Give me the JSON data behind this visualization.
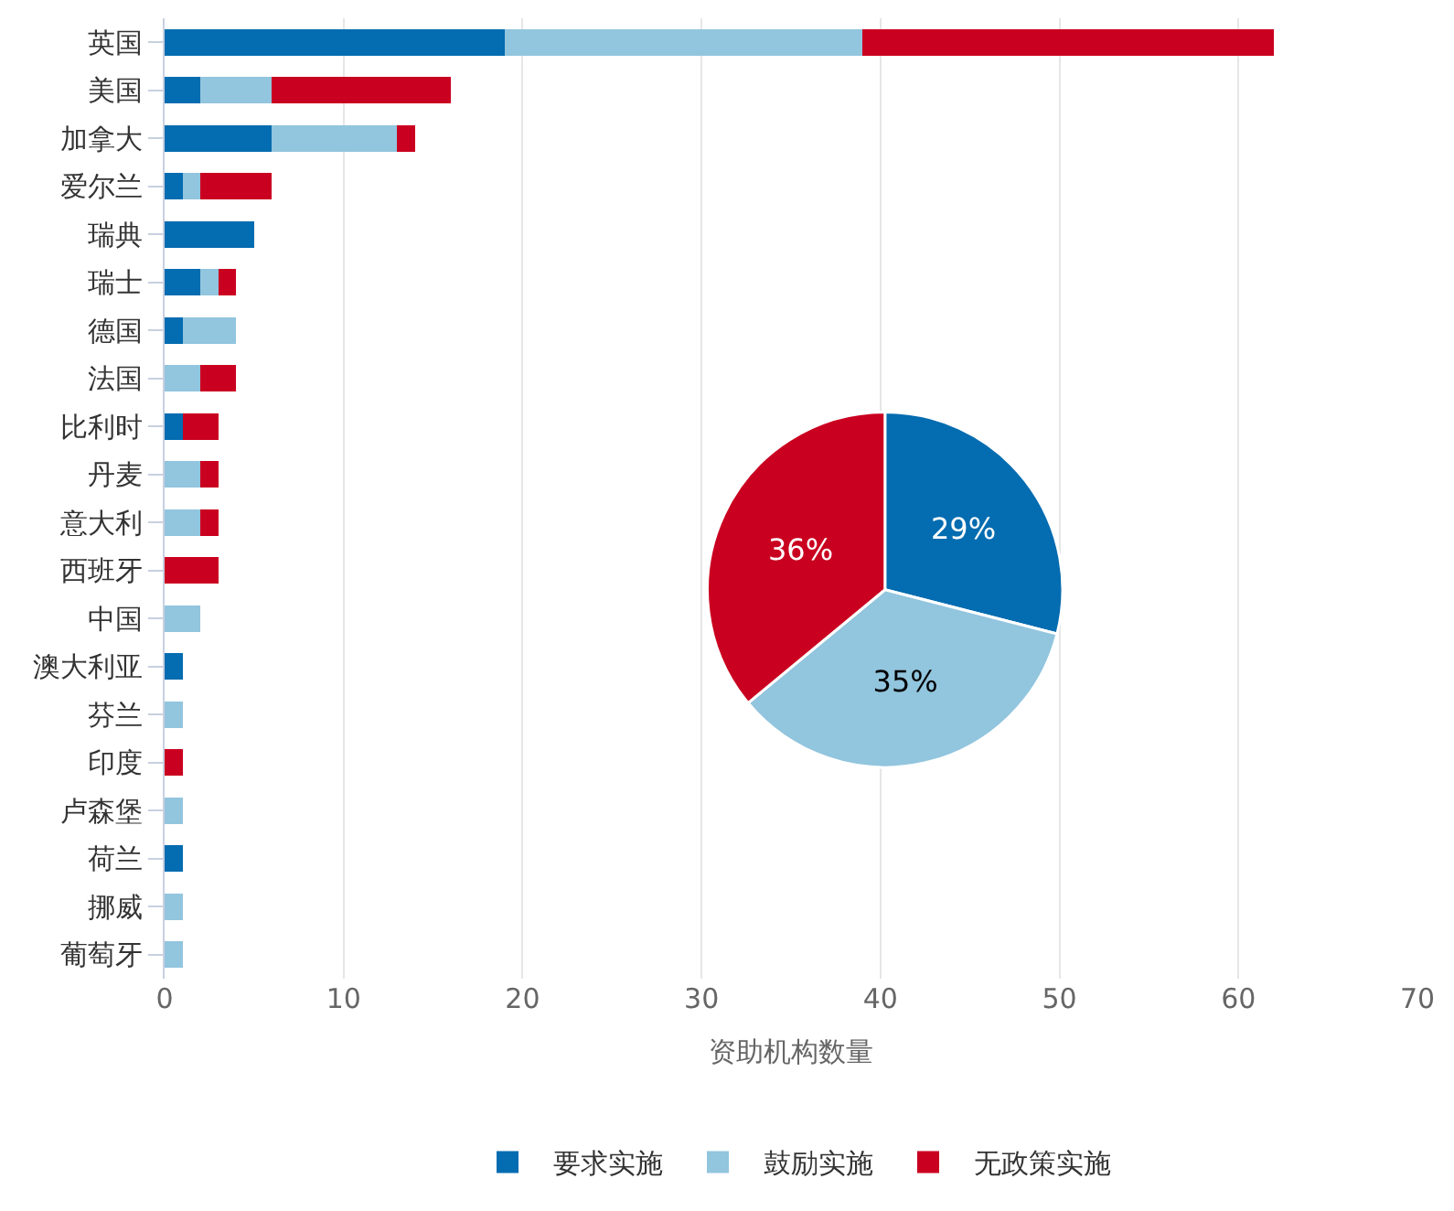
{
  "chart_data": [
    {
      "type": "bar",
      "orientation": "horizontal",
      "stacked": true,
      "xlabel": "资助机构数量",
      "categories": [
        "英国",
        "美国",
        "加拿大",
        "爱尔兰",
        "瑞典",
        "瑞士",
        "德国",
        "法国",
        "比利时",
        "丹麦",
        "意大利",
        "西班牙",
        "中国",
        "澳大利亚",
        "芬兰",
        "印度",
        "卢森堡",
        "荷兰",
        "挪威",
        "葡萄牙"
      ],
      "series": [
        {
          "name": "要求实施",
          "color": "#046cb0",
          "values": [
            19,
            2,
            6,
            1,
            5,
            2,
            1,
            null,
            1,
            null,
            null,
            null,
            null,
            1,
            null,
            null,
            null,
            1,
            null,
            null
          ]
        },
        {
          "name": "鼓励实施",
          "color": "#92c5de",
          "values": [
            20,
            4,
            7,
            1,
            null,
            1,
            3,
            2,
            null,
            2,
            2,
            null,
            2,
            null,
            1,
            null,
            1,
            null,
            1,
            1
          ]
        },
        {
          "name": "无政策实施",
          "color": "#ca0020",
          "values": [
            23,
            10,
            1,
            4,
            null,
            1,
            null,
            2,
            2,
            1,
            1,
            3,
            null,
            null,
            null,
            1,
            null,
            null,
            null,
            null
          ]
        }
      ],
      "xlim": [
        0,
        70
      ],
      "xticks": [
        0,
        10,
        20,
        30,
        40,
        50,
        60,
        70
      ],
      "grid": "x",
      "legend": "bottom"
    },
    {
      "type": "pie",
      "categories": [
        null,
        null,
        null
      ],
      "values": [
        29,
        35,
        36
      ],
      "colors": [
        "#046cb0",
        "#92c5de",
        "#ca0020"
      ],
      "value_labels": [
        "29%",
        "35%",
        "36%"
      ]
    }
  ]
}
